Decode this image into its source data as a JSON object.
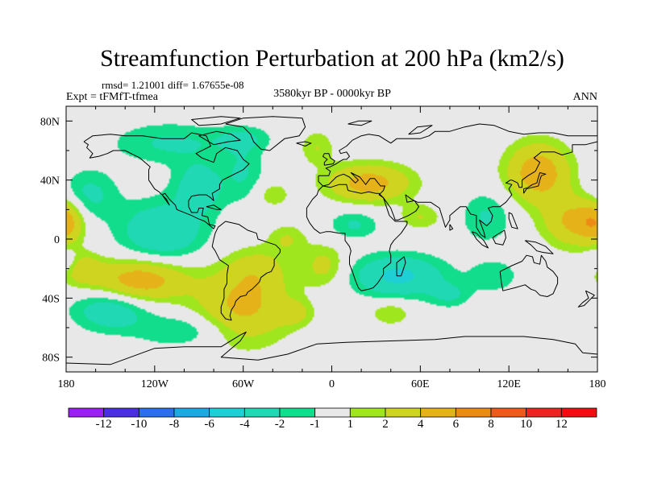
{
  "chart_data": {
    "type": "heatmap",
    "title": "Streamfunction Perturbation at 200 hPa (km2/s)",
    "stats_text": "rmsd= 1.21001 diff= 1.67655e-08",
    "left_label": "Expt = tFMfT-tfmea",
    "center_label": "3580kyr BP - 0000kyr BP",
    "right_label": "ANN",
    "projection": "cylindrical equidistant",
    "xlim": [
      -180,
      180
    ],
    "ylim": [
      -90,
      90
    ],
    "x_ticks": [
      {
        "value": -180,
        "label": "180"
      },
      {
        "value": -120,
        "label": "120W"
      },
      {
        "value": -60,
        "label": "60W"
      },
      {
        "value": 0,
        "label": "0"
      },
      {
        "value": 60,
        "label": "60E"
      },
      {
        "value": 120,
        "label": "120E"
      },
      {
        "value": 180,
        "label": "180"
      }
    ],
    "y_ticks": [
      {
        "value": 80,
        "label": "80N"
      },
      {
        "value": 40,
        "label": "40N"
      },
      {
        "value": 0,
        "label": "0"
      },
      {
        "value": -40,
        "label": "40S"
      },
      {
        "value": -80,
        "label": "80S"
      }
    ],
    "contour_levels": [
      -12,
      -10,
      -8,
      -6,
      -4,
      -2,
      -1,
      1,
      2,
      4,
      6,
      8,
      10,
      12
    ],
    "colorbar_colors": [
      "#9b1ff0",
      "#4a2fe0",
      "#2a70ec",
      "#1ea8e6",
      "#1ed0d6",
      "#20d8b4",
      "#12dd8c",
      "#e8e8e8",
      "#a0e61e",
      "#cfd420",
      "#e6b21a",
      "#ec8a14",
      "#ee5a1a",
      "#e82820",
      "#ee1010"
    ],
    "anomaly_centers": [
      {
        "lon": -130,
        "lat": -28,
        "value": 5.5,
        "sx": 22,
        "sy": 10
      },
      {
        "lon": -170,
        "lat": -20,
        "value": 2.8,
        "sx": 10,
        "sy": 8
      },
      {
        "lon": -60,
        "lat": -45,
        "value": 4.5,
        "sx": 22,
        "sy": 18
      },
      {
        "lon": -50,
        "lat": -20,
        "value": 2.0,
        "sx": 14,
        "sy": 10
      },
      {
        "lon": -150,
        "lat": -48,
        "value": -3.5,
        "sx": 18,
        "sy": 10
      },
      {
        "lon": -100,
        "lat": -62,
        "value": -2.2,
        "sx": 22,
        "sy": 8
      },
      {
        "lon": -115,
        "lat": 5,
        "value": -4.0,
        "sx": 20,
        "sy": 14
      },
      {
        "lon": -165,
        "lat": 30,
        "value": -2.5,
        "sx": 14,
        "sy": 12
      },
      {
        "lon": -90,
        "lat": 35,
        "value": -3.2,
        "sx": 12,
        "sy": 12
      },
      {
        "lon": -110,
        "lat": 65,
        "value": -2.2,
        "sx": 28,
        "sy": 10
      },
      {
        "lon": -60,
        "lat": 45,
        "value": -2.0,
        "sx": 10,
        "sy": 14
      },
      {
        "lon": -60,
        "lat": 68,
        "value": -1.8,
        "sx": 14,
        "sy": 6
      },
      {
        "lon": -40,
        "lat": 30,
        "value": 1.8,
        "sx": 8,
        "sy": 6
      },
      {
        "lon": -30,
        "lat": 0,
        "value": 2.0,
        "sx": 9,
        "sy": 7
      },
      {
        "lon": -5,
        "lat": -18,
        "value": 2.6,
        "sx": 10,
        "sy": 10
      },
      {
        "lon": -25,
        "lat": -50,
        "value": 2.2,
        "sx": 8,
        "sy": 6
      },
      {
        "lon": 25,
        "lat": 38,
        "value": 5.0,
        "sx": 20,
        "sy": 9
      },
      {
        "lon": -10,
        "lat": 62,
        "value": 2.0,
        "sx": 8,
        "sy": 8
      },
      {
        "lon": 15,
        "lat": 10,
        "value": -2.2,
        "sx": 12,
        "sy": 7
      },
      {
        "lon": 45,
        "lat": -25,
        "value": -4.5,
        "sx": 22,
        "sy": 10
      },
      {
        "lon": 60,
        "lat": 15,
        "value": 2.0,
        "sx": 10,
        "sy": 6
      },
      {
        "lon": 80,
        "lat": -38,
        "value": -2.0,
        "sx": 10,
        "sy": 6
      },
      {
        "lon": 40,
        "lat": -50,
        "value": 2.0,
        "sx": 10,
        "sy": 6
      },
      {
        "lon": 105,
        "lat": 15,
        "value": -2.2,
        "sx": 12,
        "sy": 12
      },
      {
        "lon": 140,
        "lat": 45,
        "value": 5.5,
        "sx": 15,
        "sy": 14
      },
      {
        "lon": 165,
        "lat": 12,
        "value": 4.5,
        "sx": 15,
        "sy": 12
      },
      {
        "lon": -180,
        "lat": 12,
        "value": 3.5,
        "sx": 8,
        "sy": 10
      },
      {
        "lon": 110,
        "lat": -25,
        "value": -1.8,
        "sx": 12,
        "sy": 8
      },
      {
        "lon": 180,
        "lat": -15,
        "value": -2.0,
        "sx": 6,
        "sy": 6
      }
    ]
  }
}
